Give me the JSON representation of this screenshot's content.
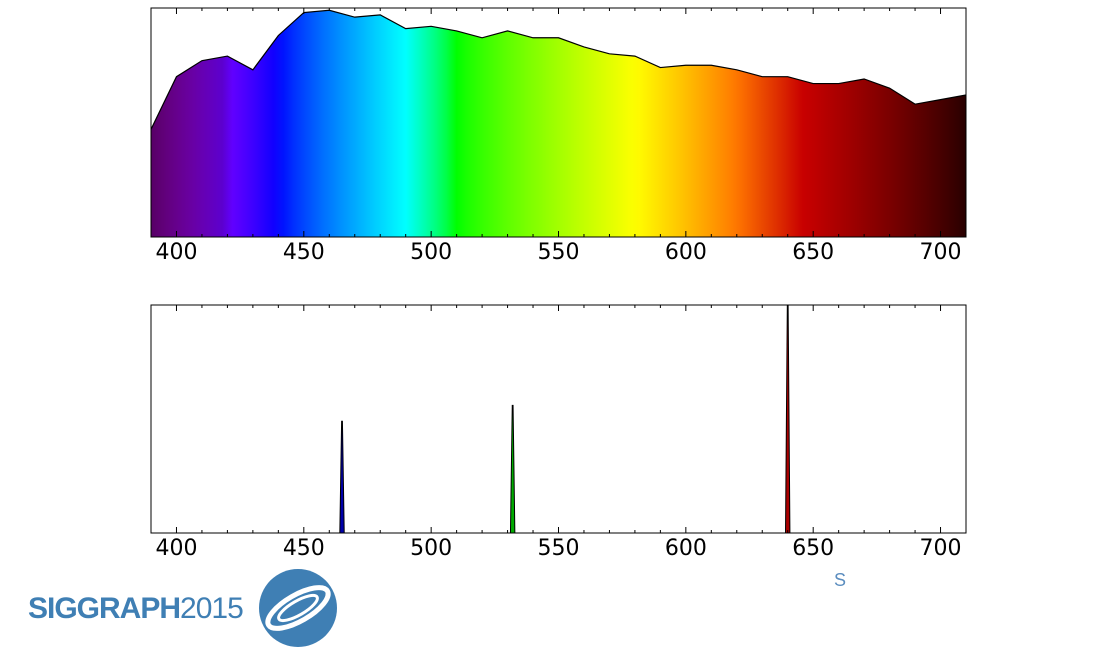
{
  "chart_data": [
    {
      "type": "area",
      "title": "",
      "xlabel": "",
      "ylabel": "",
      "xlim": [
        390,
        710
      ],
      "ylim": [
        0,
        1.0
      ],
      "xticks": [
        400,
        450,
        500,
        550,
        600,
        650,
        700
      ],
      "y_ticks_shown": false,
      "grid": false,
      "fill": "wavelength-spectrum-colors",
      "x": [
        390,
        400,
        410,
        420,
        430,
        440,
        450,
        460,
        470,
        480,
        490,
        500,
        510,
        520,
        530,
        540,
        550,
        560,
        570,
        580,
        590,
        600,
        610,
        620,
        630,
        640,
        650,
        660,
        670,
        680,
        690,
        700,
        710
      ],
      "y": [
        0.47,
        0.7,
        0.77,
        0.79,
        0.73,
        0.88,
        0.98,
        0.99,
        0.96,
        0.97,
        0.91,
        0.92,
        0.9,
        0.87,
        0.9,
        0.87,
        0.87,
        0.83,
        0.8,
        0.79,
        0.74,
        0.75,
        0.75,
        0.73,
        0.7,
        0.7,
        0.67,
        0.67,
        0.69,
        0.65,
        0.58,
        0.6,
        0.62
      ]
    },
    {
      "type": "area",
      "title": "",
      "xlabel": "",
      "ylabel": "",
      "xlim": [
        390,
        710
      ],
      "ylim": [
        0,
        1.0
      ],
      "xticks": [
        400,
        450,
        500,
        550,
        600,
        650,
        700
      ],
      "y_ticks_shown": false,
      "grid": false,
      "peaks": [
        {
          "center": 465,
          "height": 0.49,
          "color": "#0000aa"
        },
        {
          "center": 532,
          "height": 0.56,
          "color": "#00aa00"
        },
        {
          "center": 640,
          "height": 1.0,
          "color": "#aa0000"
        }
      ]
    }
  ],
  "logo": {
    "brand": "SIGGRAPH",
    "year": "2015"
  },
  "fragment": "S"
}
